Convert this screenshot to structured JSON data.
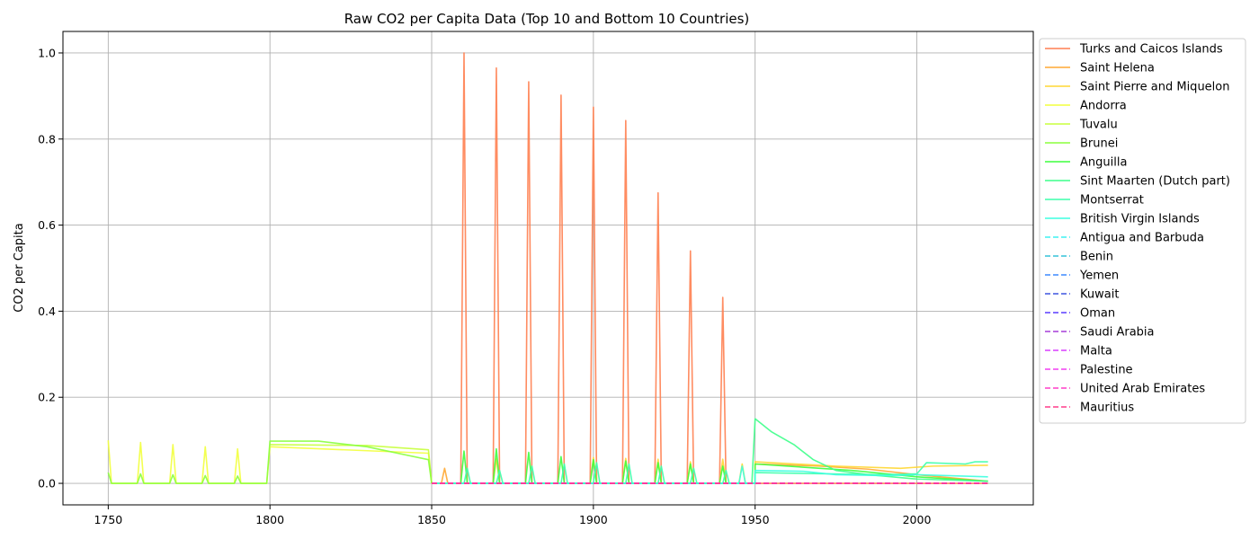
{
  "chart_data": {
    "type": "line",
    "title": "Raw CO2 per Capita Data (Top 10 and Bottom 10 Countries)",
    "xlabel": "",
    "ylabel": "CO2 per Capita",
    "xlim": [
      1736,
      2036
    ],
    "ylim": [
      -0.05,
      1.05
    ],
    "xticks": [
      1750,
      1800,
      1850,
      1900,
      1950,
      2000
    ],
    "yticks": [
      0.0,
      0.2,
      0.4,
      0.6,
      0.8,
      1.0
    ],
    "ytick_labels": [
      "0.0",
      "0.2",
      "0.4",
      "0.6",
      "0.8",
      "1.0"
    ],
    "grid": true,
    "legend_position": "outside-right-top",
    "series": [
      {
        "name": "Turks and Caicos Islands",
        "color": "#ff7f50",
        "dash": "solid",
        "points": [
          [
            1850,
            0
          ],
          [
            1859,
            0
          ],
          [
            1860,
            1.0
          ],
          [
            1861,
            0
          ],
          [
            1869,
            0
          ],
          [
            1870,
            0.965
          ],
          [
            1871,
            0
          ],
          [
            1879,
            0
          ],
          [
            1880,
            0.933
          ],
          [
            1881,
            0
          ],
          [
            1889,
            0
          ],
          [
            1890,
            0.902
          ],
          [
            1891,
            0
          ],
          [
            1899,
            0
          ],
          [
            1900,
            0.874
          ],
          [
            1901,
            0
          ],
          [
            1909,
            0
          ],
          [
            1910,
            0.843
          ],
          [
            1911,
            0
          ],
          [
            1919,
            0
          ],
          [
            1920,
            0.675
          ],
          [
            1921,
            0
          ],
          [
            1929,
            0
          ],
          [
            1930,
            0.54
          ],
          [
            1931,
            0
          ],
          [
            1939,
            0
          ],
          [
            1940,
            0.432
          ],
          [
            1941,
            0
          ],
          [
            1950,
            0
          ],
          [
            2022,
            0
          ]
        ]
      },
      {
        "name": "Saint Helena",
        "color": "#ffa833",
        "dash": "solid",
        "points": [
          [
            1850,
            0
          ],
          [
            1853,
            0
          ],
          [
            1854,
            0.035
          ],
          [
            1855,
            0
          ],
          [
            1950,
            0
          ],
          [
            1950,
            0.045
          ],
          [
            1970,
            0.04
          ],
          [
            1985,
            0.033
          ],
          [
            2000,
            0.02
          ],
          [
            2022,
            0.005
          ]
        ]
      },
      {
        "name": "Saint Pierre and Miquelon",
        "color": "#ffd733",
        "dash": "solid",
        "points": [
          [
            1850,
            0
          ],
          [
            1869,
            0
          ],
          [
            1870,
            0.058
          ],
          [
            1871,
            0
          ],
          [
            1899,
            0
          ],
          [
            1900,
            0.06
          ],
          [
            1901,
            0
          ],
          [
            1909,
            0
          ],
          [
            1910,
            0.058
          ],
          [
            1911,
            0
          ],
          [
            1919,
            0
          ],
          [
            1920,
            0.056
          ],
          [
            1921,
            0
          ],
          [
            1929,
            0
          ],
          [
            1930,
            0.05
          ],
          [
            1931,
            0
          ],
          [
            1939,
            0
          ],
          [
            1940,
            0.056
          ],
          [
            1941,
            0
          ],
          [
            1945,
            0
          ],
          [
            1946,
            0.045
          ],
          [
            1947,
            0
          ],
          [
            1950,
            0
          ],
          [
            1950,
            0.05
          ],
          [
            1975,
            0.04
          ],
          [
            1995,
            0.035
          ],
          [
            2005,
            0.04
          ],
          [
            2022,
            0.042
          ]
        ]
      },
      {
        "name": "Andorra",
        "color": "#f2ff3d",
        "dash": "solid",
        "points": [
          [
            1750,
            0.1
          ],
          [
            1751,
            0
          ],
          [
            1759,
            0
          ],
          [
            1760,
            0.095
          ],
          [
            1761,
            0
          ],
          [
            1769,
            0
          ],
          [
            1770,
            0.09
          ],
          [
            1771,
            0
          ],
          [
            1779,
            0
          ],
          [
            1780,
            0.085
          ],
          [
            1781,
            0
          ],
          [
            1789,
            0
          ],
          [
            1790,
            0.08
          ],
          [
            1791,
            0
          ],
          [
            1799,
            0
          ],
          [
            1800,
            0.085
          ],
          [
            1849,
            0.07
          ],
          [
            1850,
            0
          ]
        ]
      },
      {
        "name": "Tuvalu",
        "color": "#c8ff3d",
        "dash": "solid",
        "points": [
          [
            1800,
            0.09
          ],
          [
            1830,
            0.088
          ],
          [
            1849,
            0.078
          ],
          [
            1850,
            0
          ]
        ]
      },
      {
        "name": "Brunei",
        "color": "#8aff3d",
        "dash": "solid",
        "points": [
          [
            1750,
            0.025
          ],
          [
            1751,
            0
          ],
          [
            1759,
            0
          ],
          [
            1760,
            0.022
          ],
          [
            1761,
            0
          ],
          [
            1769,
            0
          ],
          [
            1770,
            0.02
          ],
          [
            1771,
            0
          ],
          [
            1779,
            0
          ],
          [
            1780,
            0.018
          ],
          [
            1781,
            0
          ],
          [
            1789,
            0
          ],
          [
            1790,
            0.017
          ],
          [
            1791,
            0
          ],
          [
            1799,
            0
          ],
          [
            1800,
            0.098
          ],
          [
            1815,
            0.098
          ],
          [
            1830,
            0.085
          ],
          [
            1849,
            0.055
          ],
          [
            1850,
            0
          ]
        ]
      },
      {
        "name": "Anguilla",
        "color": "#3dff3d",
        "dash": "solid",
        "points": [
          [
            1850,
            0
          ],
          [
            1859,
            0
          ],
          [
            1860,
            0.075
          ],
          [
            1861,
            0
          ],
          [
            1869,
            0
          ],
          [
            1870,
            0.08
          ],
          [
            1871,
            0
          ],
          [
            1879,
            0
          ],
          [
            1880,
            0.072
          ],
          [
            1881,
            0
          ],
          [
            1889,
            0
          ],
          [
            1890,
            0.062
          ],
          [
            1891,
            0
          ],
          [
            1899,
            0
          ],
          [
            1900,
            0.055
          ],
          [
            1901,
            0
          ],
          [
            1909,
            0
          ],
          [
            1910,
            0.052
          ],
          [
            1911,
            0
          ],
          [
            1919,
            0
          ],
          [
            1920,
            0.048
          ],
          [
            1921,
            0
          ],
          [
            1929,
            0
          ],
          [
            1930,
            0.045
          ],
          [
            1931,
            0
          ],
          [
            1939,
            0
          ],
          [
            1940,
            0.04
          ],
          [
            1941,
            0
          ],
          [
            1950,
            0
          ],
          [
            1950,
            0.045
          ],
          [
            1980,
            0.03
          ],
          [
            2000,
            0.015
          ],
          [
            2022,
            0.005
          ]
        ]
      },
      {
        "name": "Sint Maarten (Dutch part)",
        "color": "#3dff8a",
        "dash": "solid",
        "points": [
          [
            1850,
            0
          ],
          [
            1949,
            0
          ],
          [
            1950,
            0.15
          ],
          [
            1955,
            0.12
          ],
          [
            1962,
            0.09
          ],
          [
            1968,
            0.055
          ],
          [
            1975,
            0.03
          ],
          [
            1985,
            0.02
          ],
          [
            2000,
            0.01
          ],
          [
            2022,
            0.005
          ]
        ]
      },
      {
        "name": "Montserrat",
        "color": "#3dffab",
        "dash": "solid",
        "points": [
          [
            1850,
            0
          ],
          [
            1860,
            0
          ],
          [
            1861,
            0.035
          ],
          [
            1862,
            0
          ],
          [
            1870,
            0
          ],
          [
            1871,
            0.03
          ],
          [
            1872,
            0
          ],
          [
            1880,
            0
          ],
          [
            1881,
            0.04
          ],
          [
            1882,
            0
          ],
          [
            1890,
            0
          ],
          [
            1891,
            0.045
          ],
          [
            1892,
            0
          ],
          [
            1900,
            0
          ],
          [
            1901,
            0.048
          ],
          [
            1902,
            0
          ],
          [
            1910,
            0
          ],
          [
            1911,
            0.045
          ],
          [
            1912,
            0
          ],
          [
            1920,
            0
          ],
          [
            1921,
            0.04
          ],
          [
            1922,
            0
          ],
          [
            1930,
            0
          ],
          [
            1931,
            0.035
          ],
          [
            1932,
            0
          ],
          [
            1940,
            0
          ],
          [
            1941,
            0.03
          ],
          [
            1942,
            0
          ],
          [
            1950,
            0
          ],
          [
            1950,
            0.025
          ],
          [
            1990,
            0.02
          ],
          [
            2000,
            0.022
          ],
          [
            2003,
            0.048
          ],
          [
            2015,
            0.045
          ],
          [
            2018,
            0.05
          ],
          [
            2022,
            0.05
          ]
        ]
      },
      {
        "name": "British Virgin Islands",
        "color": "#3dffe0",
        "dash": "solid",
        "points": [
          [
            1850,
            0
          ],
          [
            1945,
            0
          ],
          [
            1946,
            0.04
          ],
          [
            1947,
            0
          ],
          [
            1950,
            0
          ],
          [
            1950,
            0.03
          ],
          [
            1965,
            0.028
          ],
          [
            1975,
            0.02
          ],
          [
            1990,
            0.018
          ],
          [
            2000,
            0.02
          ],
          [
            2022,
            0.015
          ]
        ]
      },
      {
        "name": "Antigua and Barbuda",
        "color": "#3df2f2",
        "dash": "dashed",
        "points": [
          [
            1850,
            0
          ],
          [
            2022,
            0
          ]
        ]
      },
      {
        "name": "Benin",
        "color": "#35c4d8",
        "dash": "dashed",
        "points": [
          [
            1850,
            0
          ],
          [
            2022,
            0
          ]
        ]
      },
      {
        "name": "Yemen",
        "color": "#3d8aff",
        "dash": "dashed",
        "points": [
          [
            1850,
            0
          ],
          [
            2022,
            0
          ]
        ]
      },
      {
        "name": "Kuwait",
        "color": "#3d55e0",
        "dash": "dashed",
        "points": [
          [
            1850,
            0
          ],
          [
            2022,
            0
          ]
        ]
      },
      {
        "name": "Oman",
        "color": "#5a3dff",
        "dash": "dashed",
        "points": [
          [
            1850,
            0
          ],
          [
            2022,
            0
          ]
        ]
      },
      {
        "name": "Saudi Arabia",
        "color": "#a63dd8",
        "dash": "dashed",
        "points": [
          [
            1850,
            0
          ],
          [
            2022,
            0
          ]
        ]
      },
      {
        "name": "Malta",
        "color": "#d83dff",
        "dash": "dashed",
        "points": [
          [
            1850,
            0
          ],
          [
            2022,
            0
          ]
        ]
      },
      {
        "name": "Palestine",
        "color": "#f23df2",
        "dash": "dashed",
        "points": [
          [
            1850,
            0
          ],
          [
            2022,
            0
          ]
        ]
      },
      {
        "name": "United Arab Emirates",
        "color": "#ff3dc8",
        "dash": "dashed",
        "points": [
          [
            1850,
            0
          ],
          [
            2022,
            0
          ]
        ]
      },
      {
        "name": "Mauritius",
        "color": "#ff3d8a",
        "dash": "dashed",
        "points": [
          [
            1850,
            0
          ],
          [
            2022,
            0
          ]
        ]
      }
    ]
  }
}
